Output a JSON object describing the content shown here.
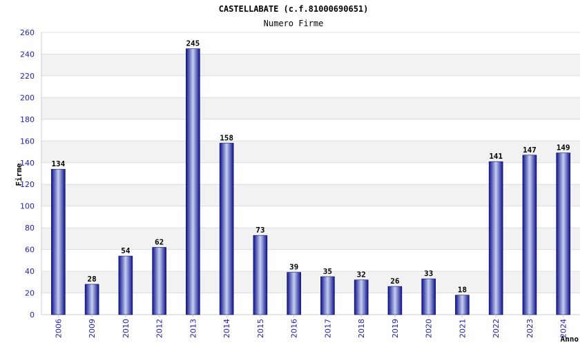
{
  "chart_data": {
    "type": "bar",
    "title": "CASTELLABATE (c.f.81000690651)",
    "subtitle": "Numero Firme",
    "xlabel": "Anno",
    "ylabel": "Firme",
    "categories": [
      "2006",
      "2009",
      "2010",
      "2012",
      "2013",
      "2014",
      "2015",
      "2016",
      "2017",
      "2018",
      "2019",
      "2020",
      "2021",
      "2022",
      "2023",
      "2024"
    ],
    "values": [
      134,
      28,
      54,
      62,
      245,
      158,
      73,
      39,
      35,
      32,
      26,
      33,
      18,
      141,
      147,
      149
    ],
    "ylim": [
      0,
      260
    ],
    "yticks": [
      0,
      20,
      40,
      60,
      80,
      100,
      120,
      140,
      160,
      180,
      200,
      220,
      240,
      260
    ],
    "grid": true,
    "colors": {
      "bar_dark": "#1a1f8c",
      "bar_light": "#c8d0f0",
      "band": "#f2f2f2",
      "tick_text": "#2222aa"
    }
  }
}
